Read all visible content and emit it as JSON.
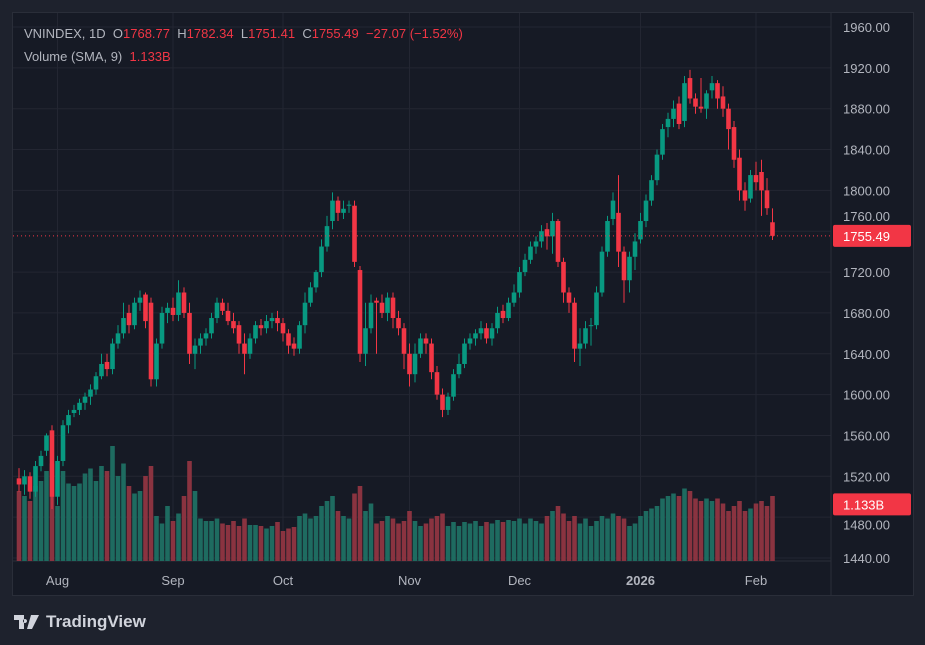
{
  "legend": {
    "symbol": "VNINDEX, 1D",
    "open_label": "O",
    "open": "1768.77",
    "high_label": "H",
    "high": "1782.34",
    "low_label": "L",
    "low": "1751.41",
    "close_label": "C",
    "close": "1755.49",
    "change": "−27.07 (−1.52%)",
    "volume_label": "Volume (SMA, 9)",
    "volume_value": "1.133B"
  },
  "brand": "TradingView",
  "colors": {
    "up": "#089981",
    "down": "#f23645",
    "up_volume": "#1e6b60",
    "down_volume": "#8a3340",
    "background": "#161a25",
    "grid": "#232632"
  },
  "chart_data": {
    "type": "candlestick",
    "ylim": [
      1440,
      1960
    ],
    "y_ticks": [
      "1960.00",
      "1920.00",
      "1880.00",
      "1840.00",
      "1800.00",
      "1760.00",
      "1720.00",
      "1680.00",
      "1640.00",
      "1600.00",
      "1560.00",
      "1520.00",
      "1480.00",
      "1440.00"
    ],
    "y_tick_values": [
      1960,
      1920,
      1880,
      1840,
      1800,
      1760,
      1720,
      1680,
      1640,
      1600,
      1560,
      1520,
      1480,
      1440
    ],
    "last_price_label": "1755.49",
    "last_price": 1755.49,
    "volume_label": "1.133B",
    "volume_max": 2.5,
    "x_ticks": [
      {
        "label": "Aug",
        "index": 7
      },
      {
        "label": "Sep",
        "index": 28
      },
      {
        "label": "Oct",
        "index": 48
      },
      {
        "label": "Nov",
        "index": 71
      },
      {
        "label": "Dec",
        "index": 91
      },
      {
        "label": "2026",
        "index": 113,
        "bold": true
      },
      {
        "label": "Feb",
        "index": 134
      }
    ],
    "candles_fields": [
      "open",
      "high",
      "low",
      "close",
      "volume_billion"
    ],
    "candles": [
      [
        1518,
        1528,
        1505,
        1512,
        1.4
      ],
      [
        1512,
        1526,
        1502,
        1520,
        1.3
      ],
      [
        1520,
        1524,
        1498,
        1505,
        1.2
      ],
      [
        1505,
        1535,
        1500,
        1530,
        1.5
      ],
      [
        1530,
        1545,
        1525,
        1540,
        1.6
      ],
      [
        1545,
        1562,
        1540,
        1560,
        1.8
      ],
      [
        1565,
        1570,
        1488,
        1500,
        1.95
      ],
      [
        1500,
        1540,
        1492,
        1535,
        1.1
      ],
      [
        1535,
        1575,
        1530,
        1570,
        1.8
      ],
      [
        1570,
        1585,
        1562,
        1580,
        1.55
      ],
      [
        1582,
        1590,
        1578,
        1585,
        1.5
      ],
      [
        1585,
        1596,
        1580,
        1592,
        1.55
      ],
      [
        1592,
        1602,
        1585,
        1598,
        1.75
      ],
      [
        1598,
        1610,
        1590,
        1605,
        1.85
      ],
      [
        1605,
        1622,
        1600,
        1618,
        1.6
      ],
      [
        1618,
        1640,
        1615,
        1630,
        1.9
      ],
      [
        1632,
        1640,
        1618,
        1625,
        1.8
      ],
      [
        1625,
        1655,
        1620,
        1650,
        2.3
      ],
      [
        1650,
        1668,
        1645,
        1660,
        1.7
      ],
      [
        1660,
        1690,
        1655,
        1675,
        1.95
      ],
      [
        1680,
        1688,
        1660,
        1668,
        1.5
      ],
      [
        1668,
        1695,
        1664,
        1690,
        1.35
      ],
      [
        1690,
        1702,
        1682,
        1695,
        1.4
      ],
      [
        1698,
        1700,
        1665,
        1672,
        1.7
      ],
      [
        1690,
        1695,
        1608,
        1615,
        1.9
      ],
      [
        1615,
        1655,
        1608,
        1650,
        0.9
      ],
      [
        1650,
        1686,
        1645,
        1680,
        0.75
      ],
      [
        1680,
        1690,
        1670,
        1685,
        1.1
      ],
      [
        1685,
        1695,
        1672,
        1678,
        0.8
      ],
      [
        1678,
        1712,
        1672,
        1700,
        0.95
      ],
      [
        1700,
        1705,
        1675,
        1680,
        1.3
      ],
      [
        1680,
        1690,
        1630,
        1640,
        2.0
      ],
      [
        1640,
        1655,
        1625,
        1648,
        1.4
      ],
      [
        1648,
        1660,
        1640,
        1655,
        0.85
      ],
      [
        1655,
        1665,
        1648,
        1660,
        0.8
      ],
      [
        1660,
        1680,
        1655,
        1675,
        0.8
      ],
      [
        1675,
        1695,
        1670,
        1690,
        0.85
      ],
      [
        1690,
        1694,
        1678,
        1682,
        0.75
      ],
      [
        1682,
        1690,
        1668,
        1672,
        0.72
      ],
      [
        1672,
        1680,
        1660,
        1665,
        0.8
      ],
      [
        1668,
        1672,
        1640,
        1650,
        0.7
      ],
      [
        1650,
        1660,
        1620,
        1640,
        0.85
      ],
      [
        1640,
        1660,
        1635,
        1655,
        0.72
      ],
      [
        1655,
        1672,
        1650,
        1668,
        0.72
      ],
      [
        1668,
        1674,
        1658,
        1665,
        0.7
      ],
      [
        1665,
        1678,
        1660,
        1672,
        0.65
      ],
      [
        1672,
        1680,
        1665,
        1675,
        0.7
      ],
      [
        1675,
        1682,
        1662,
        1670,
        0.78
      ],
      [
        1670,
        1675,
        1652,
        1660,
        0.6
      ],
      [
        1660,
        1664,
        1640,
        1648,
        0.65
      ],
      [
        1650,
        1656,
        1638,
        1645,
        0.68
      ],
      [
        1645,
        1672,
        1640,
        1668,
        0.9
      ],
      [
        1668,
        1700,
        1660,
        1690,
        0.95
      ],
      [
        1690,
        1710,
        1686,
        1705,
        0.85
      ],
      [
        1705,
        1722,
        1700,
        1720,
        0.9
      ],
      [
        1720,
        1752,
        1715,
        1745,
        1.1
      ],
      [
        1745,
        1775,
        1740,
        1765,
        1.2
      ],
      [
        1770,
        1798,
        1762,
        1790,
        1.3
      ],
      [
        1790,
        1794,
        1770,
        1778,
        1.0
      ],
      [
        1778,
        1790,
        1772,
        1782,
        0.9
      ],
      [
        1785,
        1790,
        1778,
        1786,
        0.85
      ],
      [
        1785,
        1790,
        1725,
        1730,
        1.35
      ],
      [
        1722,
        1726,
        1632,
        1640,
        1.5
      ],
      [
        1640,
        1690,
        1628,
        1665,
        1.0
      ],
      [
        1665,
        1698,
        1660,
        1690,
        1.15
      ],
      [
        1692,
        1695,
        1640,
        1690,
        0.75
      ],
      [
        1690,
        1698,
        1675,
        1680,
        0.8
      ],
      [
        1680,
        1700,
        1672,
        1695,
        0.9
      ],
      [
        1695,
        1700,
        1665,
        1675,
        0.85
      ],
      [
        1675,
        1682,
        1658,
        1665,
        0.75
      ],
      [
        1665,
        1670,
        1625,
        1640,
        0.8
      ],
      [
        1640,
        1650,
        1608,
        1620,
        1.0
      ],
      [
        1620,
        1650,
        1612,
        1640,
        0.8
      ],
      [
        1640,
        1660,
        1636,
        1655,
        0.7
      ],
      [
        1655,
        1660,
        1640,
        1650,
        0.75
      ],
      [
        1650,
        1655,
        1615,
        1622,
        0.85
      ],
      [
        1622,
        1628,
        1595,
        1600,
        0.9
      ],
      [
        1600,
        1606,
        1578,
        1585,
        0.95
      ],
      [
        1585,
        1602,
        1580,
        1598,
        0.7
      ],
      [
        1598,
        1625,
        1594,
        1620,
        0.78
      ],
      [
        1620,
        1640,
        1616,
        1630,
        0.7
      ],
      [
        1630,
        1655,
        1626,
        1650,
        0.78
      ],
      [
        1650,
        1660,
        1644,
        1655,
        0.75
      ],
      [
        1655,
        1664,
        1648,
        1660,
        0.8
      ],
      [
        1660,
        1672,
        1654,
        1665,
        0.7
      ],
      [
        1665,
        1670,
        1650,
        1655,
        0.78
      ],
      [
        1655,
        1670,
        1648,
        1665,
        0.75
      ],
      [
        1665,
        1686,
        1660,
        1680,
        0.82
      ],
      [
        1682,
        1688,
        1670,
        1675,
        0.78
      ],
      [
        1675,
        1695,
        1672,
        1690,
        0.82
      ],
      [
        1690,
        1708,
        1686,
        1700,
        0.8
      ],
      [
        1700,
        1725,
        1695,
        1720,
        0.85
      ],
      [
        1720,
        1738,
        1716,
        1732,
        0.75
      ],
      [
        1732,
        1750,
        1728,
        1745,
        0.85
      ],
      [
        1745,
        1755,
        1738,
        1750,
        0.8
      ],
      [
        1750,
        1766,
        1744,
        1760,
        0.75
      ],
      [
        1762,
        1768,
        1742,
        1755,
        0.9
      ],
      [
        1755,
        1778,
        1738,
        1770,
        1.0
      ],
      [
        1770,
        1772,
        1725,
        1730,
        1.1
      ],
      [
        1730,
        1734,
        1690,
        1700,
        0.95
      ],
      [
        1700,
        1705,
        1680,
        1690,
        0.8
      ],
      [
        1690,
        1695,
        1632,
        1645,
        0.9
      ],
      [
        1645,
        1665,
        1628,
        1650,
        0.75
      ],
      [
        1650,
        1672,
        1645,
        1665,
        0.85
      ],
      [
        1668,
        1675,
        1648,
        1668,
        0.7
      ],
      [
        1668,
        1706,
        1664,
        1700,
        0.8
      ],
      [
        1700,
        1745,
        1696,
        1740,
        0.9
      ],
      [
        1740,
        1775,
        1735,
        1770,
        0.85
      ],
      [
        1772,
        1798,
        1766,
        1790,
        0.95
      ],
      [
        1778,
        1815,
        1725,
        1740,
        0.9
      ],
      [
        1740,
        1745,
        1690,
        1712,
        0.85
      ],
      [
        1712,
        1740,
        1700,
        1735,
        0.7
      ],
      [
        1735,
        1758,
        1722,
        1750,
        0.75
      ],
      [
        1752,
        1778,
        1748,
        1770,
        0.9
      ],
      [
        1770,
        1796,
        1764,
        1790,
        1.0
      ],
      [
        1790,
        1815,
        1785,
        1810,
        1.05
      ],
      [
        1810,
        1840,
        1805,
        1835,
        1.1
      ],
      [
        1835,
        1865,
        1830,
        1860,
        1.25
      ],
      [
        1862,
        1876,
        1852,
        1870,
        1.3
      ],
      [
        1870,
        1888,
        1862,
        1880,
        1.35
      ],
      [
        1885,
        1892,
        1860,
        1865,
        1.3
      ],
      [
        1868,
        1912,
        1862,
        1905,
        1.45
      ],
      [
        1910,
        1918,
        1885,
        1890,
        1.4
      ],
      [
        1890,
        1895,
        1875,
        1882,
        1.25
      ],
      [
        1882,
        1910,
        1876,
        1880,
        1.2
      ],
      [
        1880,
        1898,
        1870,
        1895,
        1.25
      ],
      [
        1898,
        1912,
        1890,
        1905,
        1.2
      ],
      [
        1905,
        1908,
        1880,
        1890,
        1.25
      ],
      [
        1892,
        1902,
        1872,
        1880,
        1.15
      ],
      [
        1880,
        1885,
        1840,
        1860,
        1.0
      ],
      [
        1862,
        1868,
        1822,
        1830,
        1.1
      ],
      [
        1832,
        1840,
        1790,
        1800,
        1.2
      ],
      [
        1800,
        1808,
        1780,
        1790,
        1.0
      ],
      [
        1792,
        1820,
        1788,
        1815,
        1.05
      ],
      [
        1815,
        1828,
        1800,
        1808,
        1.15
      ],
      [
        1818,
        1830,
        1775,
        1800,
        1.2
      ],
      [
        1800,
        1812,
        1776,
        1782.56,
        1.1
      ],
      [
        1768.77,
        1782.34,
        1751.41,
        1755.49,
        1.3
      ]
    ]
  }
}
